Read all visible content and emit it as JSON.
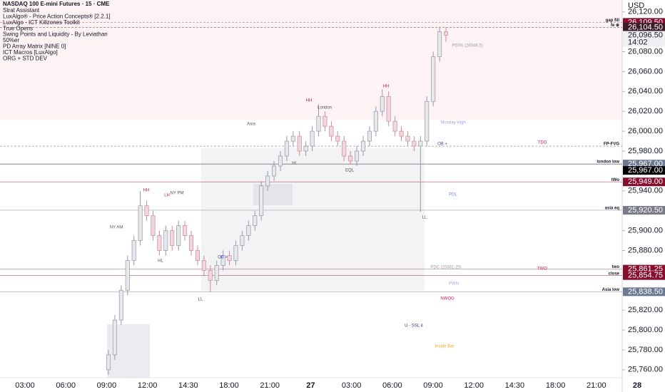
{
  "chart_data": {
    "type": "candlestick",
    "title": "NASDAQ 100 E-mini Futures · 15 · CME",
    "indicators": [
      "Strat Assistant",
      "LuxAlgo® - Price Action Concepts® [2.2.1]",
      "LuxAlgo - ICT Killzones Toolkit",
      "True Opens",
      "Swing Points and Liquidity - By Leviathan",
      "50%er",
      "PD Array Matrix [NINE 0]",
      "ICT Macros [LuxAlgo]",
      "ORG + STD DEV"
    ],
    "currency": "USD",
    "x_labels": [
      "03:00",
      "06:00",
      "09:00",
      "12:00",
      "14:30",
      "18:00",
      "21:00",
      "27",
      "03:00",
      "06:00",
      "09:00",
      "12:00",
      "14:30",
      "18:00",
      "21:00",
      "28"
    ],
    "open": [
      25760,
      25775,
      25810,
      25840,
      25870,
      25890,
      25925,
      25915,
      25895,
      25880,
      25900,
      25885,
      25905,
      25895,
      25880,
      25870,
      25860,
      25850,
      25865,
      25875,
      25870,
      25885,
      25895,
      25905,
      25915,
      25945,
      25955,
      25965,
      25975,
      25990,
      25995,
      25980,
      25985,
      26000,
      26015,
      26005,
      25995,
      25990,
      25975,
      25970,
      25980,
      25990,
      26000,
      26020,
      26035,
      26010,
      26000,
      25995,
      25990,
      25985,
      25990,
      26030,
      26075,
      26100
    ],
    "high": [
      25780,
      25815,
      25845,
      25875,
      25895,
      25940,
      25930,
      25920,
      25900,
      25905,
      25905,
      25910,
      25910,
      25900,
      25885,
      25875,
      25865,
      25870,
      25880,
      25880,
      25890,
      25900,
      25910,
      25920,
      25950,
      25960,
      25970,
      25980,
      25995,
      26000,
      26000,
      25990,
      26005,
      26027,
      26020,
      26010,
      26000,
      25995,
      25980,
      25985,
      25995,
      26005,
      26025,
      26042,
      26040,
      26015,
      26005,
      26000,
      25995,
      25995,
      26035,
      26080,
      26105,
      26104.5
    ],
    "low": [
      25755,
      25770,
      25805,
      25835,
      25865,
      25885,
      25910,
      25890,
      25875,
      25875,
      25880,
      25880,
      25890,
      25875,
      25865,
      25855,
      25838,
      25845,
      25860,
      25865,
      25865,
      25880,
      25890,
      25900,
      25910,
      25940,
      25950,
      25960,
      25970,
      25985,
      25975,
      25975,
      25980,
      25995,
      26000,
      25990,
      25985,
      25970,
      25967,
      25965,
      25975,
      25985,
      25995,
      26015,
      26005,
      25995,
      25990,
      25985,
      25980,
      25919,
      25985,
      26025,
      26070,
      26090
    ],
    "close": [
      25775,
      25810,
      25840,
      25870,
      25890,
      25925,
      25915,
      25895,
      25880,
      25900,
      25885,
      25905,
      25895,
      25880,
      25870,
      25860,
      25850,
      25865,
      25875,
      25870,
      25885,
      25895,
      25905,
      25915,
      25945,
      25955,
      25965,
      25975,
      25990,
      25995,
      25980,
      25985,
      26000,
      26015,
      26005,
      25995,
      25990,
      25975,
      25970,
      25980,
      25990,
      26000,
      26020,
      26035,
      26010,
      26000,
      25995,
      25990,
      25985,
      25990,
      26030,
      26075,
      26100,
      26096.5
    ],
    "up_color": "#e6e8ee",
    "down_color": "#f2d6dd",
    "ylim": [
      25752,
      26132
    ],
    "yticks": [
      {
        "value": 26120,
        "label": "26,120.00"
      },
      {
        "value": 26080,
        "label": "26,080.00"
      },
      {
        "value": 26060,
        "label": "26,060.00"
      },
      {
        "value": 26040,
        "label": "26,040.00"
      },
      {
        "value": 26020,
        "label": "26,020.00"
      },
      {
        "value": 26000,
        "label": "26,000.00"
      },
      {
        "value": 25980,
        "label": "25,980.00"
      },
      {
        "value": 25940,
        "label": "25,940.00"
      },
      {
        "value": 25900,
        "label": "25,900.00"
      },
      {
        "value": 25880,
        "label": "25,880.00"
      },
      {
        "value": 25820,
        "label": "25,820.00"
      },
      {
        "value": 25800,
        "label": "25,800.00"
      },
      {
        "value": 25780,
        "label": "25,780.00"
      },
      {
        "value": 25760,
        "label": "25,760.00"
      }
    ],
    "last": {
      "value": 26096.5,
      "label": "26,096.50",
      "countdown": "14:02"
    },
    "levels": [
      {
        "name": "gap fill",
        "value": 26109.5,
        "label": "26,109.50",
        "color": "#880e2f"
      },
      {
        "name": "fe ⊕",
        "value": 26104.5,
        "label": "26,104.50",
        "color": "#3b1d28"
      },
      {
        "name": "FP-FVG",
        "value": 25985,
        "label": null,
        "color": "#4a4a6a"
      },
      {
        "name": "london low",
        "value": 25967,
        "label": "25,967.00",
        "color": "#6b7a90"
      },
      {
        "name": null,
        "value": 25967,
        "label": "25,967.00",
        "color": "#000000"
      },
      {
        "name": "tWo",
        "value": 25949,
        "label": "25,949.00",
        "color": "#880e2f"
      },
      {
        "name": "asia eq",
        "value": 25920.5,
        "label": "25,920.50",
        "color": "#787b86"
      },
      {
        "name": "two",
        "value": 25861.25,
        "label": "25,861.25",
        "color": "#880e2f"
      },
      {
        "name": "close",
        "value": 25854.75,
        "label": "25,854.75",
        "color": "#880e2f"
      },
      {
        "name": "Asia low",
        "value": 25838.5,
        "label": "25,838.50",
        "color": "#6b7a90"
      }
    ],
    "annotations": [
      "NY AM",
      "NY PM",
      "London",
      "Asia",
      "HH",
      "HH",
      "HH",
      "HL",
      "HL",
      "LL",
      "LL",
      "LH",
      "EQL",
      "Monday High",
      "TDO",
      "P50% (26048.5)",
      "PDC (25881.25)",
      "TWO",
      "PWH",
      "NWOG",
      "PDL",
      "U - SSL 4",
      "Inside Bar",
      "OB +",
      "OB +"
    ]
  }
}
